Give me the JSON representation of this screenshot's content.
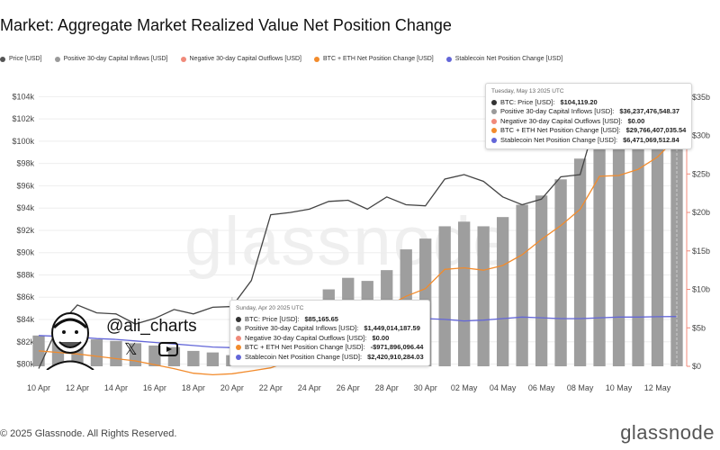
{
  "title": "Market: Aggregate Market Realized Value Net Position Change",
  "legend": [
    {
      "label": "Price [USD]",
      "color": "#555555"
    },
    {
      "label": "Positive 30-day Capital Inflows [USD]",
      "color": "#9a9a9a"
    },
    {
      "label": "Negative 30-day Capital Outflows [USD]",
      "color": "#f08a7a"
    },
    {
      "label": "BTC + ETH Net Position Change [USD]",
      "color": "#f28b2c"
    },
    {
      "label": "Stablecoin Net Position Change [USD]",
      "color": "#6366d8"
    }
  ],
  "tooltip_a": {
    "date": "Tuesday, May 13 2025 UTC",
    "rows": [
      {
        "key": "BTC: Price [USD]",
        "value": "$104,119.20",
        "color": "#333333"
      },
      {
        "key": "Positive 30-day Capital Inflows [USD]",
        "value": "$36,237,476,548.37",
        "color": "#9a9a9a"
      },
      {
        "key": "Negative 30-day Capital Outflows [USD]",
        "value": "$0.00",
        "color": "#f08a7a"
      },
      {
        "key": "BTC + ETH Net Position Change [USD]",
        "value": "$29,766,407,035.54",
        "color": "#f28b2c"
      },
      {
        "key": "Stablecoin Net Position Change [USD]",
        "value": "$6,471,069,512.84",
        "color": "#6366d8"
      }
    ]
  },
  "tooltip_b": {
    "date": "Sunday, Apr 20 2025 UTC",
    "rows": [
      {
        "key": "BTC: Price [USD]",
        "value": "$85,165.65",
        "color": "#333333"
      },
      {
        "key": "Positive 30-day Capital Inflows [USD]",
        "value": "$1,449,014,187.59",
        "color": "#9a9a9a"
      },
      {
        "key": "Negative 30-day Capital Outflows [USD]",
        "value": "$0.00",
        "color": "#f08a7a"
      },
      {
        "key": "BTC + ETH Net Position Change [USD]",
        "value": "-$971,896,096.44",
        "color": "#f28b2c"
      },
      {
        "key": "Stablecoin Net Position Change [USD]",
        "value": "$2,420,910,284.03",
        "color": "#6366d8"
      }
    ]
  },
  "watermark": "glassnode",
  "copyright": "© 2025 Glassnode. All Rights Reserved.",
  "brand": "glassnode",
  "badge": {
    "handle": "@ali_charts",
    "x_icon": "x-icon",
    "yt_icon": "youtube-icon"
  },
  "chart_data": {
    "type": "bar",
    "x": [
      "Apr 10",
      "Apr 11",
      "Apr 12",
      "Apr 13",
      "Apr 14",
      "Apr 15",
      "Apr 16",
      "Apr 17",
      "Apr 18",
      "Apr 19",
      "Apr 20",
      "Apr 21",
      "Apr 22",
      "Apr 23",
      "Apr 24",
      "Apr 25",
      "Apr 26",
      "Apr 27",
      "Apr 28",
      "Apr 29",
      "Apr 30",
      "May 1",
      "May 2",
      "May 3",
      "May 4",
      "May 5",
      "May 6",
      "May 7",
      "May 8",
      "May 9",
      "May 10",
      "May 11",
      "May 12",
      "May 13"
    ],
    "x_tick_labels": [
      "10 Apr",
      "12 Apr",
      "14 Apr",
      "16 Apr",
      "18 Apr",
      "20 Apr",
      "22 Apr",
      "24 Apr",
      "26 Apr",
      "28 Apr",
      "30 Apr",
      "02 May",
      "04 May",
      "06 May",
      "08 May",
      "10 May",
      "12 May"
    ],
    "y_left_ticks": [
      "$80k",
      "$82k",
      "$84k",
      "$86k",
      "$88k",
      "$90k",
      "$92k",
      "$94k",
      "$96k",
      "$98k",
      "$100k",
      "$102k",
      "$104k"
    ],
    "y_right_ticks": [
      "$0",
      "$5b",
      "$10b",
      "$15b",
      "$20b",
      "$25b",
      "$30b",
      "$35b"
    ],
    "y_left_range": [
      79800,
      105000
    ],
    "y_right_range": [
      0,
      36500000000
    ],
    "series": [
      {
        "name": "Price [USD]",
        "axis": "left",
        "kind": "line",
        "values": [
          79600,
          83400,
          85300,
          84600,
          84500,
          83600,
          84100,
          84900,
          84500,
          85100,
          85165,
          87500,
          93400,
          93600,
          93900,
          94600,
          94700,
          93900,
          95000,
          94300,
          94200,
          96600,
          97000,
          96400,
          95000,
          94300,
          94800,
          96800,
          97000,
          103000,
          104000,
          103500,
          102600,
          104119
        ]
      },
      {
        "name": "Positive 30-day Capital Inflows [USD]",
        "axis": "right",
        "kind": "bar",
        "values": [
          4000000000,
          3900000000,
          3700000000,
          3500000000,
          3300000000,
          3000000000,
          2700000000,
          2500000000,
          2000000000,
          1800000000,
          1449014187,
          2000000000,
          2500000000,
          3000000000,
          4000000000,
          10000000000,
          11500000000,
          11100000000,
          12500000000,
          15200000000,
          16600000000,
          18200000000,
          18800000000,
          18200000000,
          19400000000,
          21000000000,
          22200000000,
          24300000000,
          27000000000,
          30000000000,
          31600000000,
          33000000000,
          34500000000,
          36237476548
        ]
      },
      {
        "name": "BTC + ETH Net Position Change [USD]",
        "axis": "right",
        "kind": "line",
        "values": [
          2000000000,
          1800000000,
          1600000000,
          1300000000,
          1000000000,
          700000000,
          200000000,
          -300000000,
          -900000000,
          -1100000000,
          -971896096,
          -600000000,
          -200000000,
          700000000,
          2000000000,
          4000000000,
          6000000000,
          7200000000,
          7800000000,
          9100000000,
          10100000000,
          12600000000,
          12800000000,
          12500000000,
          13100000000,
          14500000000,
          16500000000,
          18300000000,
          20400000000,
          24700000000,
          24800000000,
          25600000000,
          27200000000,
          29766407035
        ]
      },
      {
        "name": "Stablecoin Net Position Change [USD]",
        "axis": "right",
        "kind": "line",
        "values": [
          4000000000,
          3900000000,
          3800000000,
          3600000000,
          3500000000,
          3300000000,
          3100000000,
          2900000000,
          2700000000,
          2500000000,
          2420910284,
          3000000000,
          3800000000,
          4300000000,
          5000000000,
          5600000000,
          5800000000,
          5900000000,
          6000000000,
          6100000000,
          6200000000,
          6100000000,
          5900000000,
          6000000000,
          6200000000,
          6400000000,
          6300000000,
          6200000000,
          6200000000,
          6300000000,
          6400000000,
          6400000000,
          6450000000,
          6471069512
        ]
      }
    ],
    "grid": true
  }
}
